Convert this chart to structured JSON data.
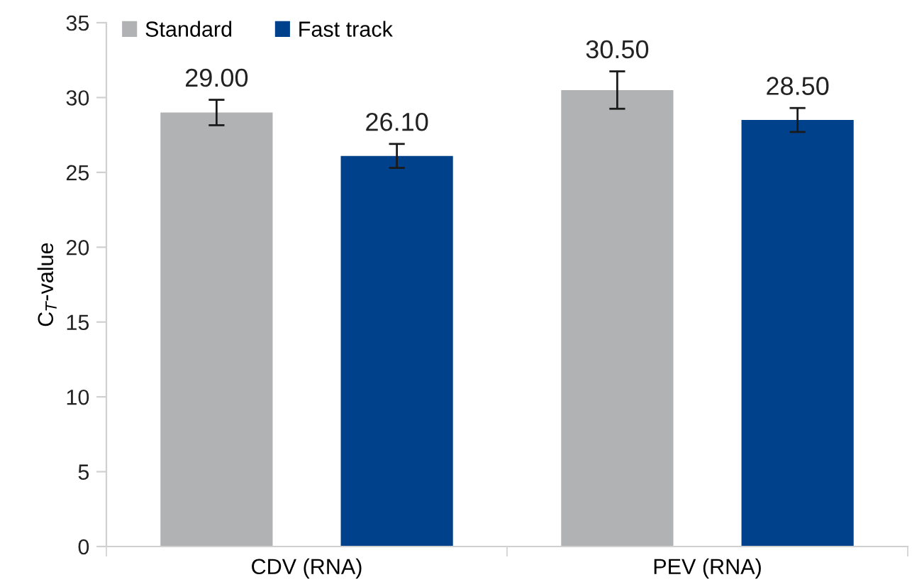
{
  "chart_data": {
    "type": "bar",
    "ylabel": "C$_{T}$-value",
    "categories": [
      "CDV (RNA)",
      "PEV (RNA)"
    ],
    "series": [
      {
        "name": "Standard",
        "color": "#b1b2b4",
        "values": [
          29.0,
          30.5
        ],
        "errors": [
          0.85,
          1.25
        ],
        "value_labels": [
          "29.00",
          "30.50"
        ]
      },
      {
        "name": "Fast track",
        "color": "#00418c",
        "values": [
          26.1,
          28.5
        ],
        "errors": [
          0.8,
          0.8
        ],
        "value_labels": [
          "26.10",
          "28.50"
        ]
      }
    ],
    "ylim": [
      0,
      35
    ],
    "yticks": [
      0,
      5,
      10,
      15,
      20,
      25,
      30,
      35
    ],
    "grid": false,
    "legend": "top left"
  }
}
